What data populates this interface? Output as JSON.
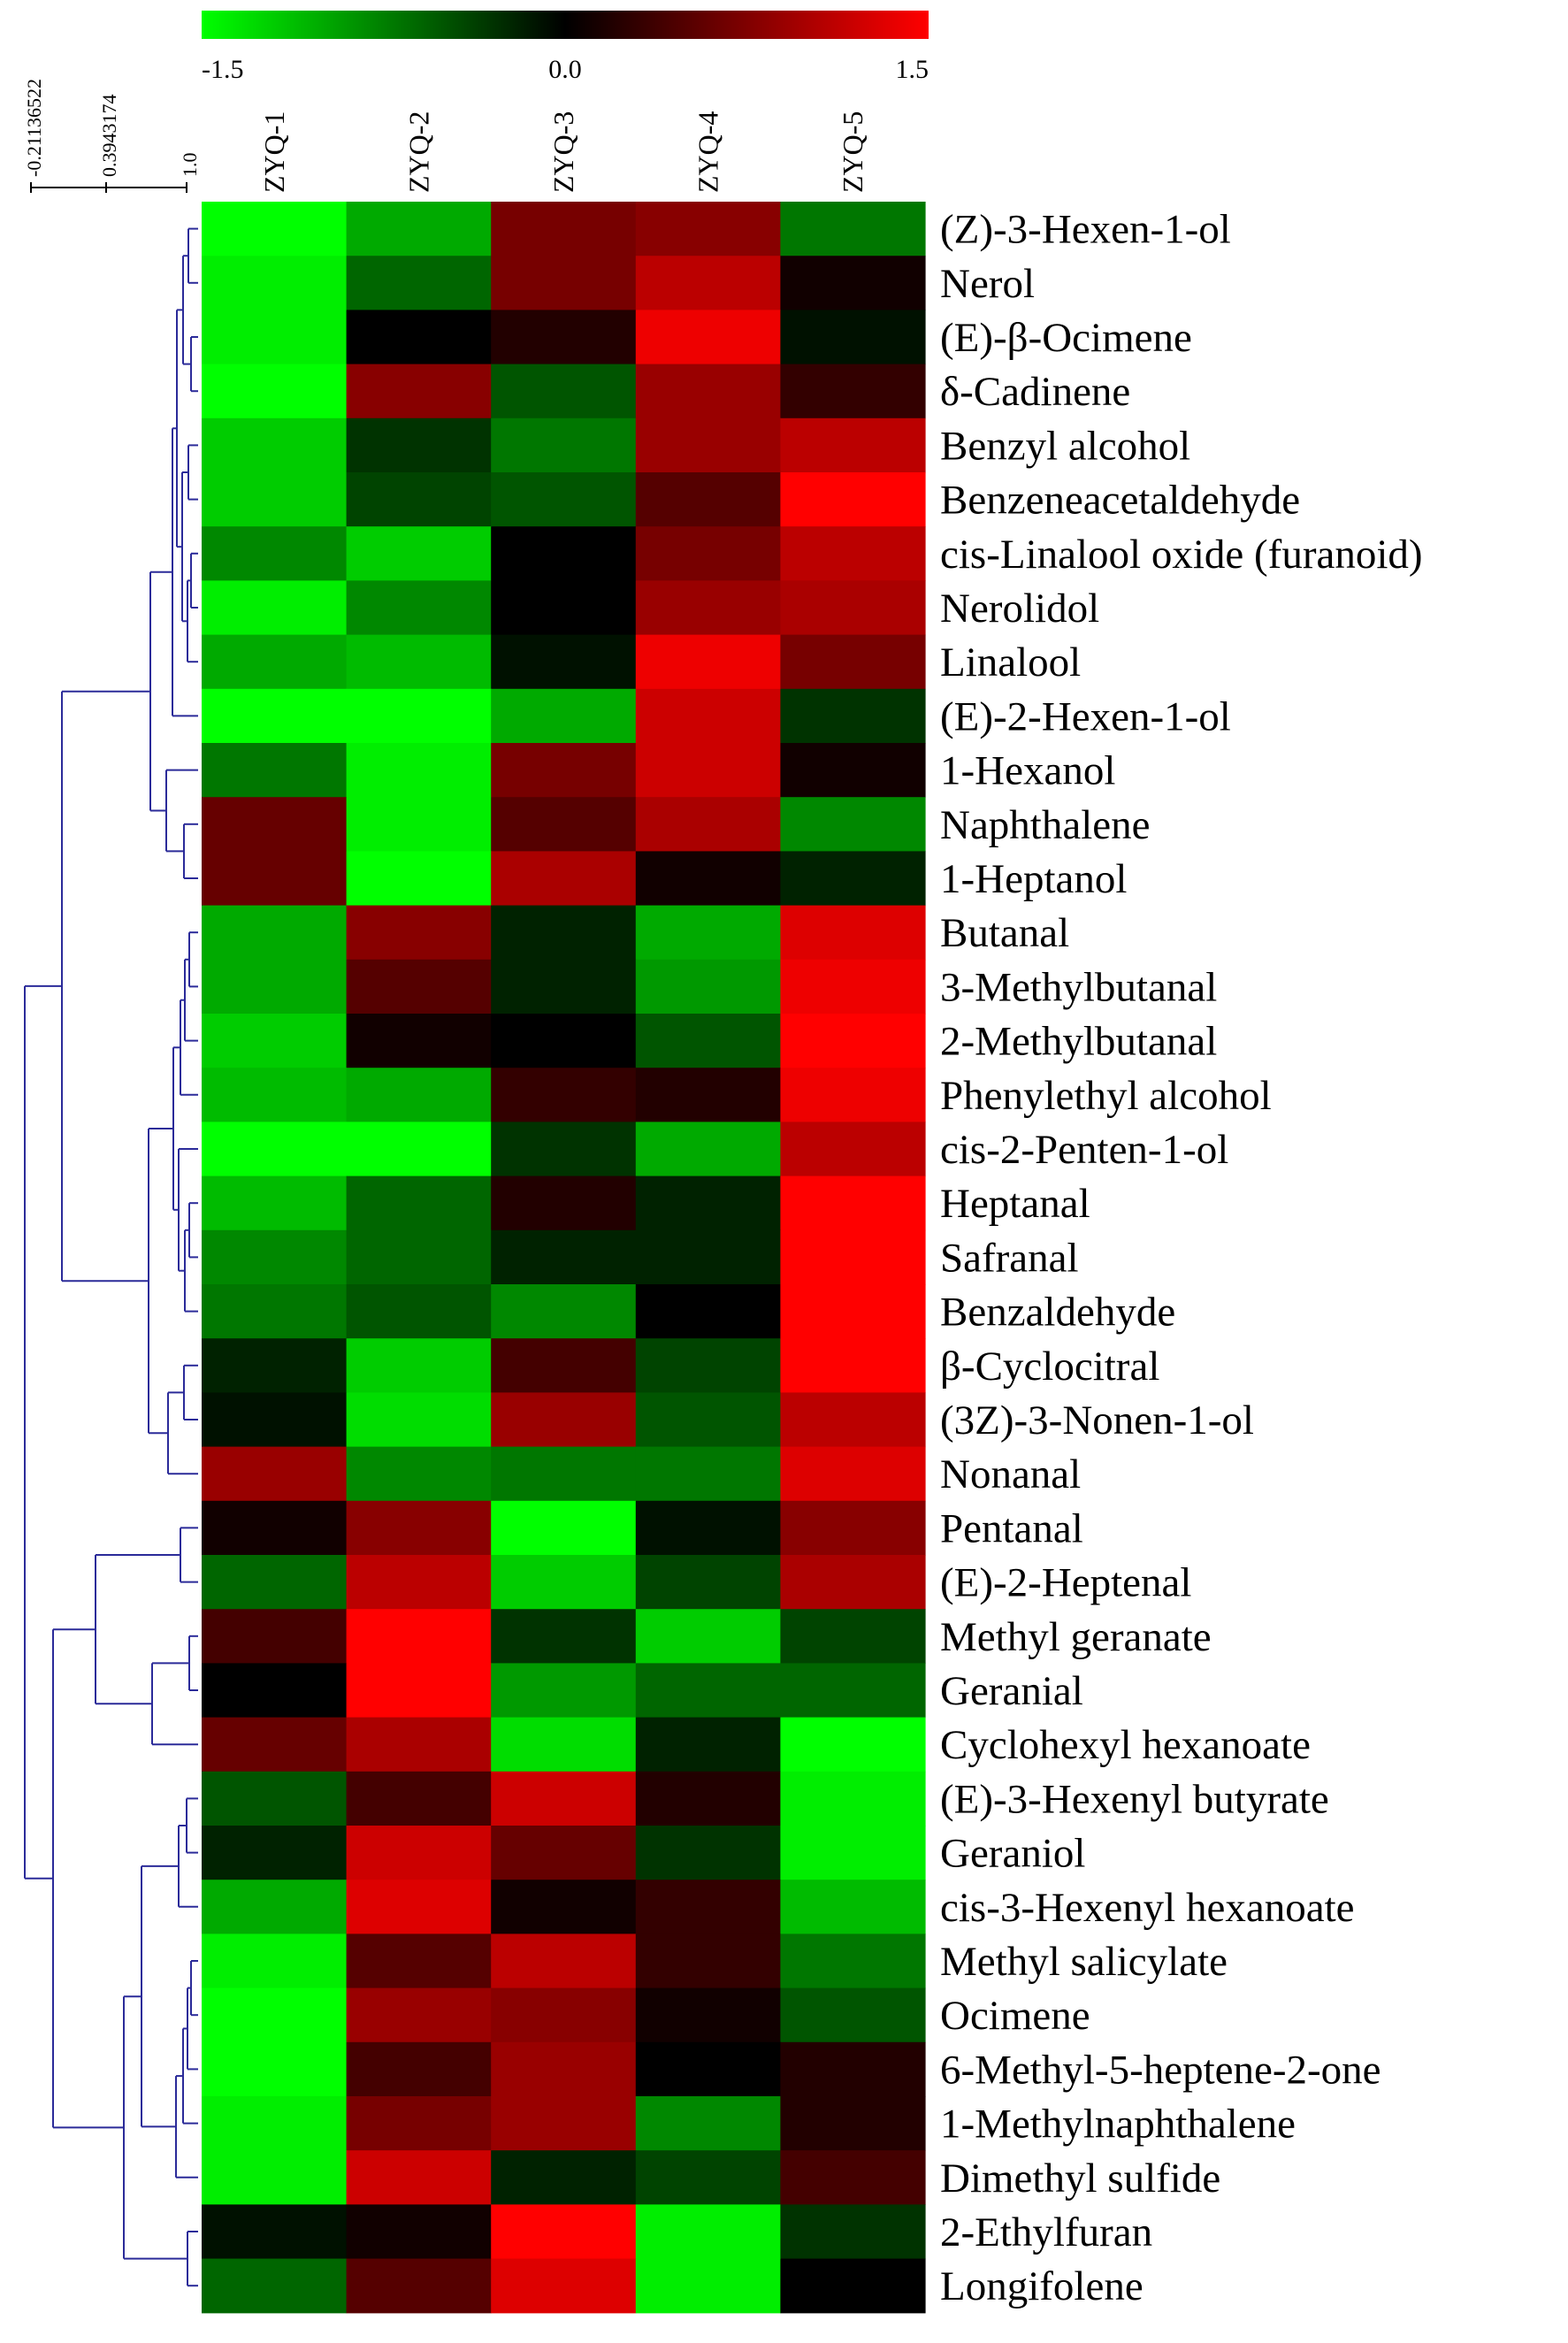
{
  "chart_data": {
    "type": "heatmap",
    "title": "",
    "color_scale": {
      "min": -1.5,
      "mid": 0.0,
      "max": 1.5,
      "min_label": "-1.5",
      "mid_label": "0.0",
      "max_label": "1.5",
      "low_color": "#00ff00",
      "mid_color": "#000000",
      "high_color": "#ff0000"
    },
    "dendrogram_axis": {
      "labels": [
        "-0.21136522",
        "0.3943174",
        "1.0"
      ],
      "line_color": "#2b2b99"
    },
    "columns": [
      "ZYQ-1",
      "ZYQ-2",
      "ZYQ-3",
      "ZYQ-4",
      "ZYQ-5"
    ],
    "rows": [
      "(Z)-3-Hexen-1-ol",
      "Nerol",
      "(E)-β-Ocimene",
      "δ-Cadinene",
      "Benzyl alcohol",
      "Benzeneacetaldehyde",
      "cis-Linalool oxide (furanoid)",
      "Nerolidol",
      "Linalool",
      "(E)-2-Hexen-1-ol",
      "1-Hexanol",
      "Naphthalene",
      "1-Heptanol",
      "Butanal",
      "3-Methylbutanal",
      "2-Methylbutanal",
      "Phenylethyl alcohol",
      "cis-2-Penten-1-ol",
      "Heptanal",
      "Safranal",
      "Benzaldehyde",
      "β-Cyclocitral",
      "(3Z)-3-Nonen-1-ol",
      "Nonanal",
      "Pentanal",
      "(E)-2-Heptenal",
      "Methyl geranate",
      "Geranial",
      "Cyclohexyl hexanoate",
      "(E)-3-Hexenyl butyrate",
      "Geraniol",
      "cis-3-Hexenyl hexanoate",
      "Methyl salicylate",
      "Ocimene",
      "6-Methyl-5-heptene-2-one",
      "1-Methylnaphthalene",
      "Dimethyl sulfide",
      "2-Ethylfuran",
      "Longifolene"
    ],
    "values": [
      [
        -1.5,
        -1.0,
        0.7,
        0.8,
        -0.7
      ],
      [
        -1.4,
        -0.6,
        0.7,
        1.1,
        0.1
      ],
      [
        -1.4,
        0.0,
        0.2,
        1.4,
        -0.1
      ],
      [
        -1.5,
        0.8,
        -0.5,
        0.9,
        0.3
      ],
      [
        -1.2,
        -0.3,
        -0.7,
        0.9,
        1.1
      ],
      [
        -1.2,
        -0.4,
        -0.5,
        0.5,
        1.5
      ],
      [
        -0.8,
        -1.2,
        0.0,
        0.7,
        1.1
      ],
      [
        -1.4,
        -0.8,
        0.0,
        0.9,
        1.0
      ],
      [
        -1.0,
        -1.1,
        -0.1,
        1.4,
        0.7
      ],
      [
        -1.5,
        -1.5,
        -1.0,
        1.2,
        -0.3
      ],
      [
        -0.7,
        -1.4,
        0.7,
        1.2,
        0.1
      ],
      [
        0.6,
        -1.4,
        0.5,
        1.0,
        -0.8
      ],
      [
        0.6,
        -1.5,
        1.0,
        0.1,
        -0.2
      ],
      [
        -1.0,
        0.8,
        -0.2,
        -1.0,
        1.3
      ],
      [
        -1.0,
        0.5,
        -0.2,
        -0.9,
        1.4
      ],
      [
        -1.2,
        0.1,
        0.0,
        -0.5,
        1.5
      ],
      [
        -1.1,
        -1.0,
        0.3,
        0.2,
        1.4
      ],
      [
        -1.5,
        -1.5,
        -0.3,
        -1.0,
        1.1
      ],
      [
        -1.1,
        -0.6,
        0.2,
        -0.2,
        1.5
      ],
      [
        -0.8,
        -0.6,
        -0.2,
        -0.2,
        1.5
      ],
      [
        -0.7,
        -0.5,
        -0.8,
        0.0,
        1.5
      ],
      [
        -0.2,
        -1.2,
        0.4,
        -0.4,
        1.5
      ],
      [
        -0.1,
        -1.3,
        0.9,
        -0.5,
        1.1
      ],
      [
        0.9,
        -0.8,
        -0.7,
        -0.7,
        1.3
      ],
      [
        0.1,
        0.8,
        -1.5,
        -0.1,
        0.8
      ],
      [
        -0.6,
        1.1,
        -1.2,
        -0.4,
        1.0
      ],
      [
        0.4,
        1.5,
        -0.3,
        -1.2,
        -0.4
      ],
      [
        0.0,
        1.5,
        -0.9,
        -0.6,
        -0.6
      ],
      [
        0.6,
        1.0,
        -1.3,
        -0.2,
        -1.5
      ],
      [
        -0.5,
        0.4,
        1.2,
        0.2,
        -1.4
      ],
      [
        -0.2,
        1.2,
        0.6,
        -0.3,
        -1.4
      ],
      [
        -1.0,
        1.3,
        0.1,
        0.3,
        -1.1
      ],
      [
        -1.4,
        0.5,
        1.1,
        0.3,
        -0.7
      ],
      [
        -1.5,
        0.9,
        0.8,
        0.1,
        -0.5
      ],
      [
        -1.5,
        0.4,
        0.9,
        0.0,
        0.2
      ],
      [
        -1.4,
        0.7,
        0.9,
        -0.8,
        0.2
      ],
      [
        -1.4,
        1.2,
        -0.2,
        -0.4,
        0.4
      ],
      [
        -0.1,
        0.1,
        1.5,
        -1.4,
        -0.3
      ],
      [
        -0.6,
        0.5,
        1.3,
        -1.4,
        0.0
      ]
    ]
  }
}
